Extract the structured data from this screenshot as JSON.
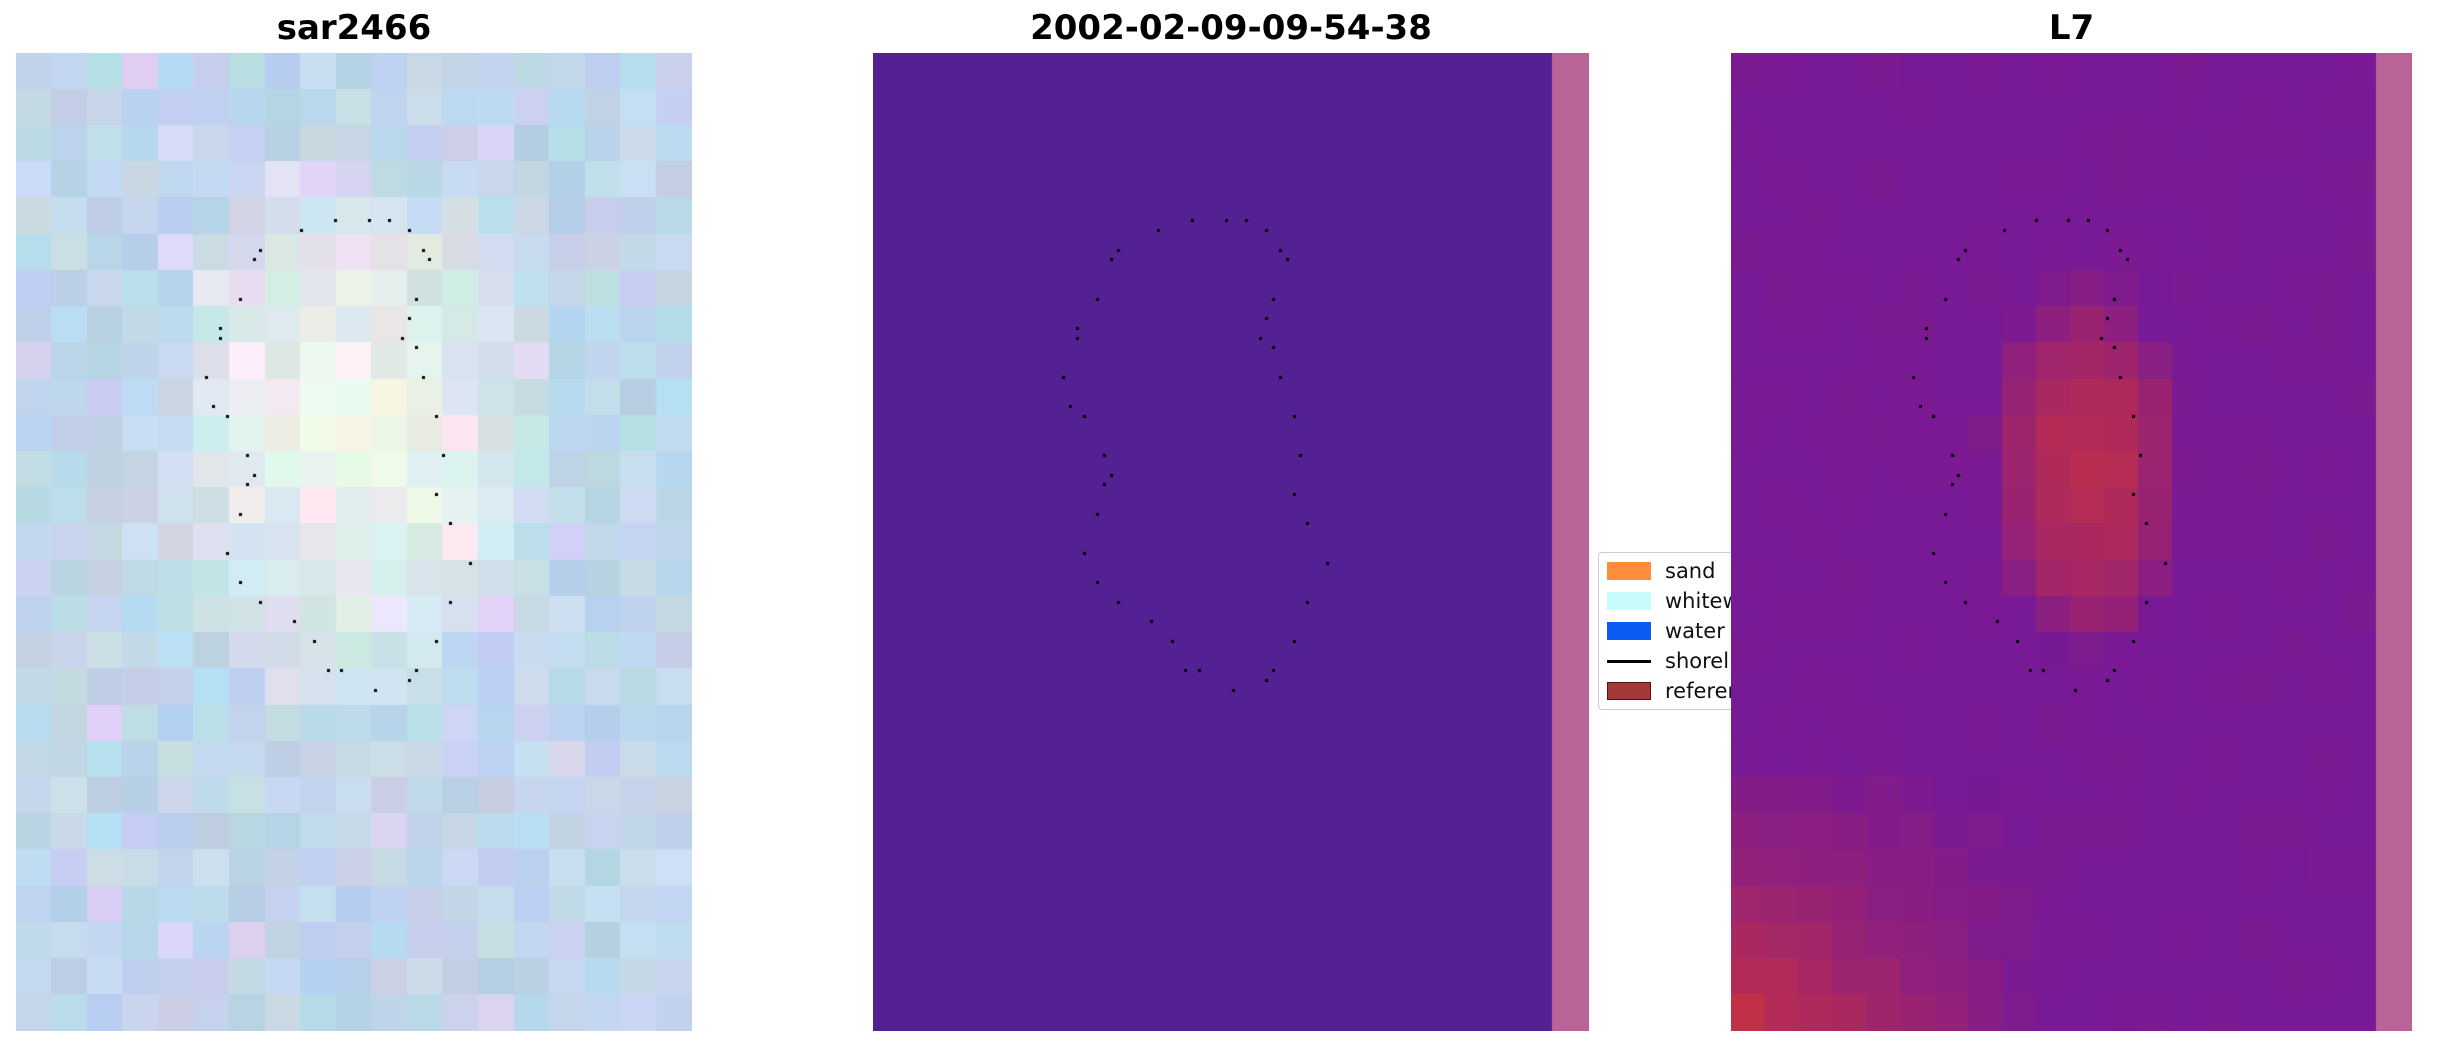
{
  "panels": [
    {
      "title": "sar2466"
    },
    {
      "title": "2002-02-09-09-54-38"
    },
    {
      "title": "L7"
    }
  ],
  "legend": {
    "items": [
      {
        "label": "sand",
        "kind": "patch",
        "color": "#ff8c3a"
      },
      {
        "label": "whitewater",
        "kind": "patch",
        "color": "#c8fbfb"
      },
      {
        "label": "water",
        "kind": "patch",
        "color": "#0a5cf5"
      },
      {
        "label": "shoreline",
        "kind": "line",
        "color": "#000000"
      },
      {
        "label": "reference shoreline",
        "kind": "patch",
        "color": "#a33a3a"
      }
    ]
  },
  "colors": {
    "classified_background": "#542194",
    "nodata_strip": "#b96496",
    "shoreline_points": "#000000"
  }
}
